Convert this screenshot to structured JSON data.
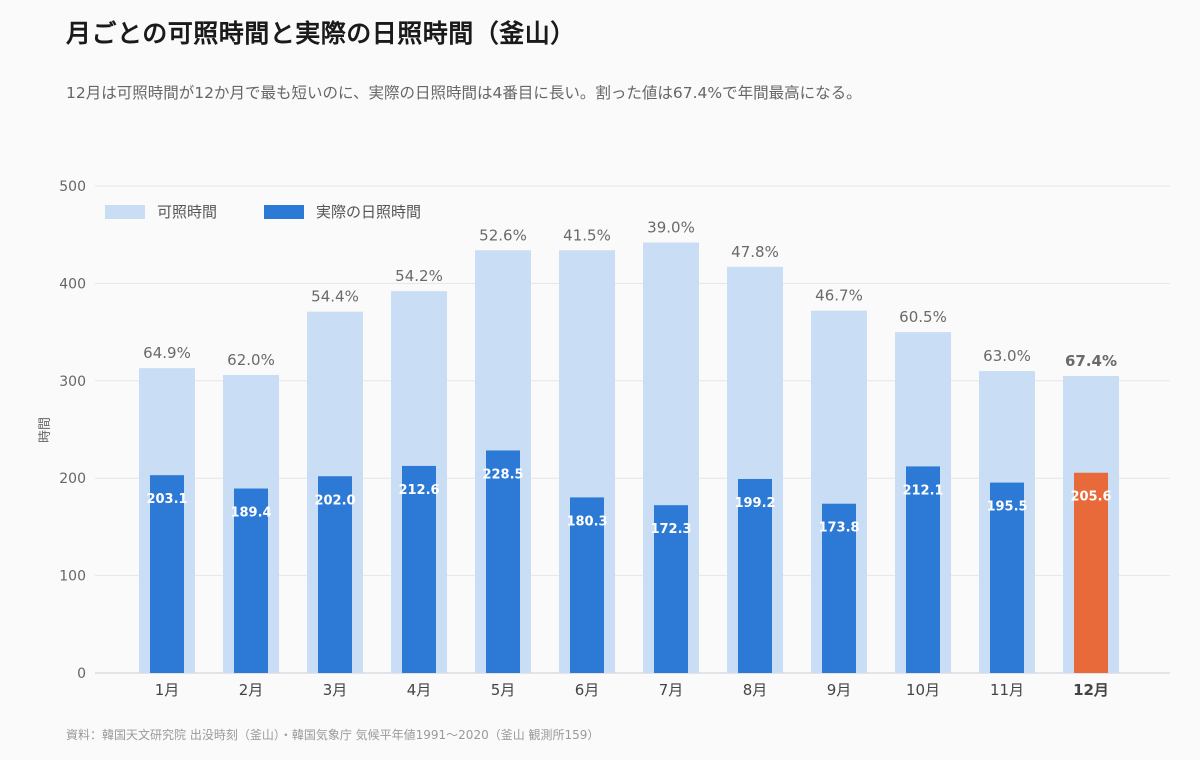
{
  "title": "月ごとの可照時間と実際の日照時間（釜山）",
  "subtitle": "12月は可照時間が12か月で最も短いのに、実際の日照時間は4番目に長い。割った値は67.4%で年間最高になる。",
  "source": "資料：韓国天文研究院 出没時刻（釜山）・韓国気象庁 気候平年値1991～2020（釜山 観測所159）",
  "chart_data": {
    "type": "bar",
    "categories": [
      "1月",
      "2月",
      "3月",
      "4月",
      "5月",
      "6月",
      "7月",
      "8月",
      "9月",
      "10月",
      "11月",
      "12月"
    ],
    "series": [
      {
        "name": "可照時間",
        "color": "#c9ddf4",
        "values": [
          313,
          306,
          371,
          392,
          434,
          434,
          442,
          417,
          372,
          350,
          310,
          305
        ]
      },
      {
        "name": "実際の日照時間",
        "color": "#2d79d6",
        "values": [
          203.1,
          189.4,
          202.0,
          212.6,
          228.5,
          180.3,
          172.3,
          199.2,
          173.8,
          212.1,
          195.5,
          205.6
        ]
      }
    ],
    "value_labels": [
      "203.1",
      "189.4",
      "202.0",
      "212.6",
      "228.5",
      "180.3",
      "172.3",
      "199.2",
      "173.8",
      "212.1",
      "195.5",
      "205.6"
    ],
    "ratio_labels": [
      "64.9%",
      "62.0%",
      "54.4%",
      "54.2%",
      "52.6%",
      "41.5%",
      "39.0%",
      "47.8%",
      "46.7%",
      "60.5%",
      "63.0%",
      "67.4%"
    ],
    "highlight_index": 11,
    "highlight_color": "#e8693a",
    "ylabel": "時間",
    "ylim": [
      0,
      500
    ],
    "yticks": [
      0,
      100,
      200,
      300,
      400,
      500
    ],
    "grid": true,
    "legend_position": "top-left"
  }
}
